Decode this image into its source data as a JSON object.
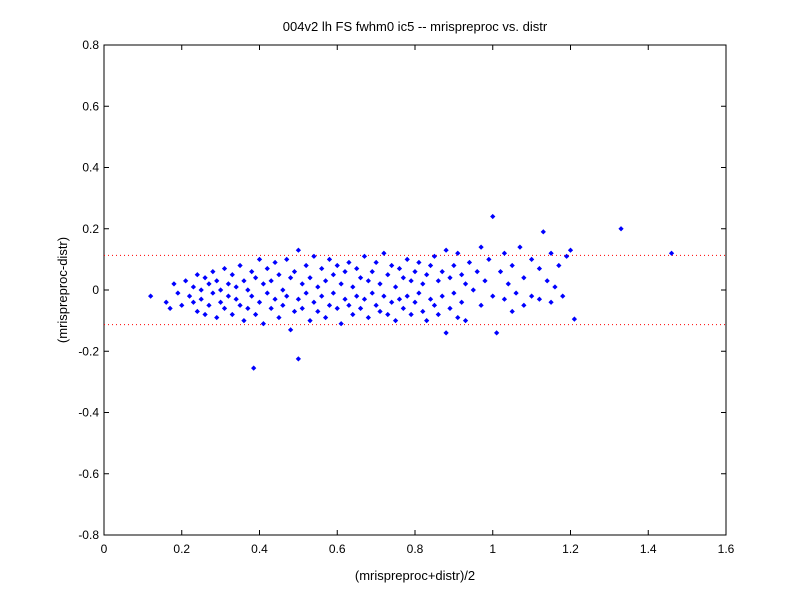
{
  "chart_data": {
    "type": "scatter",
    "title": "004v2 lh FS fwhm0 ic5 -- mrispreproc vs. distr",
    "xlabel": "(mrispreproc+distr)/2",
    "ylabel": "(mrispreproc-distr)",
    "xlim": [
      0,
      1.6
    ],
    "ylim": [
      -0.8,
      0.8
    ],
    "x_ticks": [
      0,
      0.2,
      0.4,
      0.6,
      0.8,
      1,
      1.2,
      1.4,
      1.6
    ],
    "x_tick_labels": [
      "0",
      "0.2",
      "0.4",
      "0.6",
      "0.8",
      "1",
      "1.2",
      "1.4",
      "1.6"
    ],
    "y_ticks": [
      -0.8,
      -0.6,
      -0.4,
      -0.2,
      0,
      0.2,
      0.4,
      0.6,
      0.8
    ],
    "y_tick_labels": [
      "-0.8",
      "-0.6",
      "-0.4",
      "-0.2",
      "0",
      "0.2",
      "0.4",
      "0.6",
      "0.8"
    ],
    "grid": false,
    "marker_color": "#0000ff",
    "reference_line_color": "#ff0000",
    "reference_lines": [
      0.113,
      -0.113
    ],
    "points": [
      [
        0.12,
        -0.02
      ],
      [
        0.16,
        -0.04
      ],
      [
        0.17,
        -0.06
      ],
      [
        0.18,
        0.02
      ],
      [
        0.19,
        -0.01
      ],
      [
        0.2,
        -0.05
      ],
      [
        0.21,
        0.03
      ],
      [
        0.22,
        -0.02
      ],
      [
        0.23,
        0.01
      ],
      [
        0.23,
        -0.04
      ],
      [
        0.24,
        0.05
      ],
      [
        0.24,
        -0.07
      ],
      [
        0.25,
        0.0
      ],
      [
        0.25,
        -0.03
      ],
      [
        0.26,
        0.04
      ],
      [
        0.26,
        -0.08
      ],
      [
        0.27,
        0.02
      ],
      [
        0.27,
        -0.05
      ],
      [
        0.28,
        0.06
      ],
      [
        0.28,
        -0.01
      ],
      [
        0.29,
        0.03
      ],
      [
        0.29,
        -0.09
      ],
      [
        0.3,
        0.0
      ],
      [
        0.3,
        -0.04
      ],
      [
        0.31,
        0.07
      ],
      [
        0.31,
        -0.06
      ],
      [
        0.32,
        0.02
      ],
      [
        0.32,
        -0.02
      ],
      [
        0.33,
        0.05
      ],
      [
        0.33,
        -0.08
      ],
      [
        0.34,
        0.01
      ],
      [
        0.34,
        -0.03
      ],
      [
        0.35,
        0.08
      ],
      [
        0.35,
        -0.05
      ],
      [
        0.36,
        0.03
      ],
      [
        0.36,
        -0.1
      ],
      [
        0.37,
        0.0
      ],
      [
        0.37,
        -0.06
      ],
      [
        0.38,
        0.06
      ],
      [
        0.38,
        -0.02
      ],
      [
        0.385,
        -0.255
      ],
      [
        0.39,
        0.04
      ],
      [
        0.39,
        -0.08
      ],
      [
        0.4,
        0.1
      ],
      [
        0.4,
        -0.04
      ],
      [
        0.41,
        0.02
      ],
      [
        0.41,
        -0.11
      ],
      [
        0.42,
        0.07
      ],
      [
        0.42,
        -0.01
      ],
      [
        0.43,
        0.03
      ],
      [
        0.43,
        -0.06
      ],
      [
        0.44,
        0.09
      ],
      [
        0.44,
        -0.03
      ],
      [
        0.45,
        0.05
      ],
      [
        0.45,
        -0.09
      ],
      [
        0.46,
        0.0
      ],
      [
        0.46,
        -0.05
      ],
      [
        0.47,
        0.1
      ],
      [
        0.47,
        -0.02
      ],
      [
        0.48,
        0.04
      ],
      [
        0.48,
        -0.13
      ],
      [
        0.49,
        0.06
      ],
      [
        0.49,
        -0.07
      ],
      [
        0.5,
        0.13
      ],
      [
        0.5,
        -0.03
      ],
      [
        0.5,
        -0.225
      ],
      [
        0.51,
        0.02
      ],
      [
        0.51,
        -0.06
      ],
      [
        0.52,
        0.08
      ],
      [
        0.52,
        -0.01
      ],
      [
        0.53,
        0.04
      ],
      [
        0.53,
        -0.1
      ],
      [
        0.54,
        0.11
      ],
      [
        0.54,
        -0.04
      ],
      [
        0.55,
        0.01
      ],
      [
        0.55,
        -0.07
      ],
      [
        0.56,
        0.07
      ],
      [
        0.56,
        -0.02
      ],
      [
        0.57,
        0.03
      ],
      [
        0.57,
        -0.09
      ],
      [
        0.58,
        0.1
      ],
      [
        0.58,
        -0.05
      ],
      [
        0.59,
        0.05
      ],
      [
        0.59,
        -0.01
      ],
      [
        0.6,
        0.08
      ],
      [
        0.6,
        -0.06
      ],
      [
        0.61,
        0.02
      ],
      [
        0.61,
        -0.11
      ],
      [
        0.62,
        0.06
      ],
      [
        0.62,
        -0.03
      ],
      [
        0.63,
        0.09
      ],
      [
        0.63,
        -0.05
      ],
      [
        0.64,
        0.01
      ],
      [
        0.64,
        -0.08
      ],
      [
        0.65,
        0.07
      ],
      [
        0.65,
        -0.02
      ],
      [
        0.66,
        0.04
      ],
      [
        0.66,
        -0.06
      ],
      [
        0.67,
        0.11
      ],
      [
        0.67,
        -0.03
      ],
      [
        0.68,
        0.03
      ],
      [
        0.68,
        -0.09
      ],
      [
        0.69,
        0.06
      ],
      [
        0.69,
        -0.01
      ],
      [
        0.7,
        0.09
      ],
      [
        0.7,
        -0.05
      ],
      [
        0.71,
        0.02
      ],
      [
        0.71,
        -0.07
      ],
      [
        0.72,
        0.12
      ],
      [
        0.72,
        -0.02
      ],
      [
        0.73,
        0.05
      ],
      [
        0.73,
        -0.08
      ],
      [
        0.74,
        0.08
      ],
      [
        0.74,
        -0.04
      ],
      [
        0.75,
        0.01
      ],
      [
        0.75,
        -0.1
      ],
      [
        0.76,
        0.07
      ],
      [
        0.76,
        -0.03
      ],
      [
        0.77,
        0.04
      ],
      [
        0.77,
        -0.06
      ],
      [
        0.78,
        0.1
      ],
      [
        0.78,
        -0.02
      ],
      [
        0.79,
        0.03
      ],
      [
        0.79,
        -0.08
      ],
      [
        0.8,
        0.06
      ],
      [
        0.8,
        -0.04
      ],
      [
        0.81,
        0.09
      ],
      [
        0.81,
        -0.01
      ],
      [
        0.82,
        0.02
      ],
      [
        0.82,
        -0.07
      ],
      [
        0.83,
        0.05
      ],
      [
        0.83,
        -0.1
      ],
      [
        0.84,
        0.08
      ],
      [
        0.84,
        -0.03
      ],
      [
        0.85,
        0.11
      ],
      [
        0.85,
        -0.05
      ],
      [
        0.86,
        0.03
      ],
      [
        0.86,
        -0.08
      ],
      [
        0.87,
        0.06
      ],
      [
        0.87,
        -0.02
      ],
      [
        0.88,
        0.13
      ],
      [
        0.88,
        -0.14
      ],
      [
        0.89,
        0.04
      ],
      [
        0.89,
        -0.06
      ],
      [
        0.9,
        0.08
      ],
      [
        0.9,
        -0.01
      ],
      [
        0.91,
        0.12
      ],
      [
        0.91,
        -0.09
      ],
      [
        0.92,
        0.05
      ],
      [
        0.92,
        -0.04
      ],
      [
        0.93,
        0.02
      ],
      [
        0.93,
        -0.1
      ],
      [
        0.94,
        0.09
      ],
      [
        0.95,
        0.0
      ],
      [
        0.96,
        0.06
      ],
      [
        0.97,
        0.14
      ],
      [
        0.97,
        -0.05
      ],
      [
        0.98,
        0.03
      ],
      [
        0.99,
        0.1
      ],
      [
        1.0,
        0.24
      ],
      [
        1.0,
        -0.02
      ],
      [
        1.01,
        -0.14
      ],
      [
        1.02,
        0.06
      ],
      [
        1.03,
        0.12
      ],
      [
        1.03,
        -0.03
      ],
      [
        1.04,
        0.02
      ],
      [
        1.05,
        0.08
      ],
      [
        1.05,
        -0.07
      ],
      [
        1.06,
        -0.01
      ],
      [
        1.07,
        0.14
      ],
      [
        1.08,
        0.04
      ],
      [
        1.08,
        -0.05
      ],
      [
        1.1,
        0.1
      ],
      [
        1.1,
        -0.02
      ],
      [
        1.12,
        0.07
      ],
      [
        1.12,
        -0.03
      ],
      [
        1.13,
        0.19
      ],
      [
        1.14,
        0.03
      ],
      [
        1.15,
        0.12
      ],
      [
        1.15,
        -0.04
      ],
      [
        1.16,
        0.01
      ],
      [
        1.17,
        0.08
      ],
      [
        1.18,
        -0.02
      ],
      [
        1.19,
        0.11
      ],
      [
        1.2,
        0.13
      ],
      [
        1.21,
        -0.095
      ],
      [
        1.33,
        0.2
      ],
      [
        1.46,
        0.12
      ]
    ]
  }
}
